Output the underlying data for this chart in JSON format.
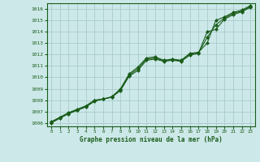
{
  "title": "Graphe pression niveau de la mer (hPa)",
  "bg_color": "#cce8e8",
  "grid_color": "#aacccc",
  "line_color": "#1a5c1a",
  "marker_color": "#1a5c1a",
  "xlim": [
    -0.5,
    23.5
  ],
  "ylim": [
    1005.7,
    1016.5
  ],
  "xticks": [
    0,
    1,
    2,
    3,
    4,
    5,
    6,
    7,
    8,
    9,
    10,
    11,
    12,
    13,
    14,
    15,
    16,
    17,
    18,
    19,
    20,
    21,
    22,
    23
  ],
  "yticks": [
    1006,
    1007,
    1008,
    1009,
    1010,
    1011,
    1012,
    1013,
    1014,
    1015,
    1016
  ],
  "series1_x": [
    0,
    1,
    2,
    3,
    4,
    5,
    6,
    7,
    8,
    9,
    10,
    11,
    12,
    13,
    14,
    15,
    16,
    17,
    18,
    19,
    20,
    21,
    22,
    23
  ],
  "series1": [
    1006.1,
    1006.5,
    1006.9,
    1007.2,
    1007.5,
    1008.0,
    1008.1,
    1008.3,
    1009.0,
    1010.3,
    1010.9,
    1011.7,
    1011.8,
    1011.5,
    1011.6,
    1011.5,
    1012.1,
    1012.2,
    1013.0,
    1015.0,
    1015.3,
    1015.7,
    1015.9,
    1016.3
  ],
  "series2_x": [
    0,
    1,
    2,
    3,
    4,
    5,
    6,
    7,
    8,
    9,
    10,
    11,
    12,
    13,
    14,
    15,
    16,
    17,
    18,
    19,
    20,
    21,
    22,
    23
  ],
  "series2": [
    1006.0,
    1006.4,
    1006.8,
    1007.1,
    1007.4,
    1007.9,
    1008.1,
    1008.25,
    1008.85,
    1010.1,
    1010.6,
    1011.5,
    1011.6,
    1011.4,
    1011.5,
    1011.4,
    1011.95,
    1012.1,
    1014.0,
    1014.2,
    1015.1,
    1015.5,
    1015.75,
    1016.15
  ],
  "series3_x": [
    0,
    1,
    2,
    3,
    4,
    5,
    6,
    7,
    8,
    9,
    10,
    11,
    12,
    13,
    14,
    15,
    16,
    17,
    18,
    19,
    20,
    21,
    22,
    23
  ],
  "series3": [
    1006.05,
    1006.45,
    1006.85,
    1007.15,
    1007.45,
    1007.95,
    1008.1,
    1008.28,
    1008.9,
    1010.2,
    1010.75,
    1011.6,
    1011.7,
    1011.45,
    1011.55,
    1011.45,
    1012.0,
    1012.15,
    1013.5,
    1014.6,
    1015.2,
    1015.6,
    1015.82,
    1016.2
  ]
}
